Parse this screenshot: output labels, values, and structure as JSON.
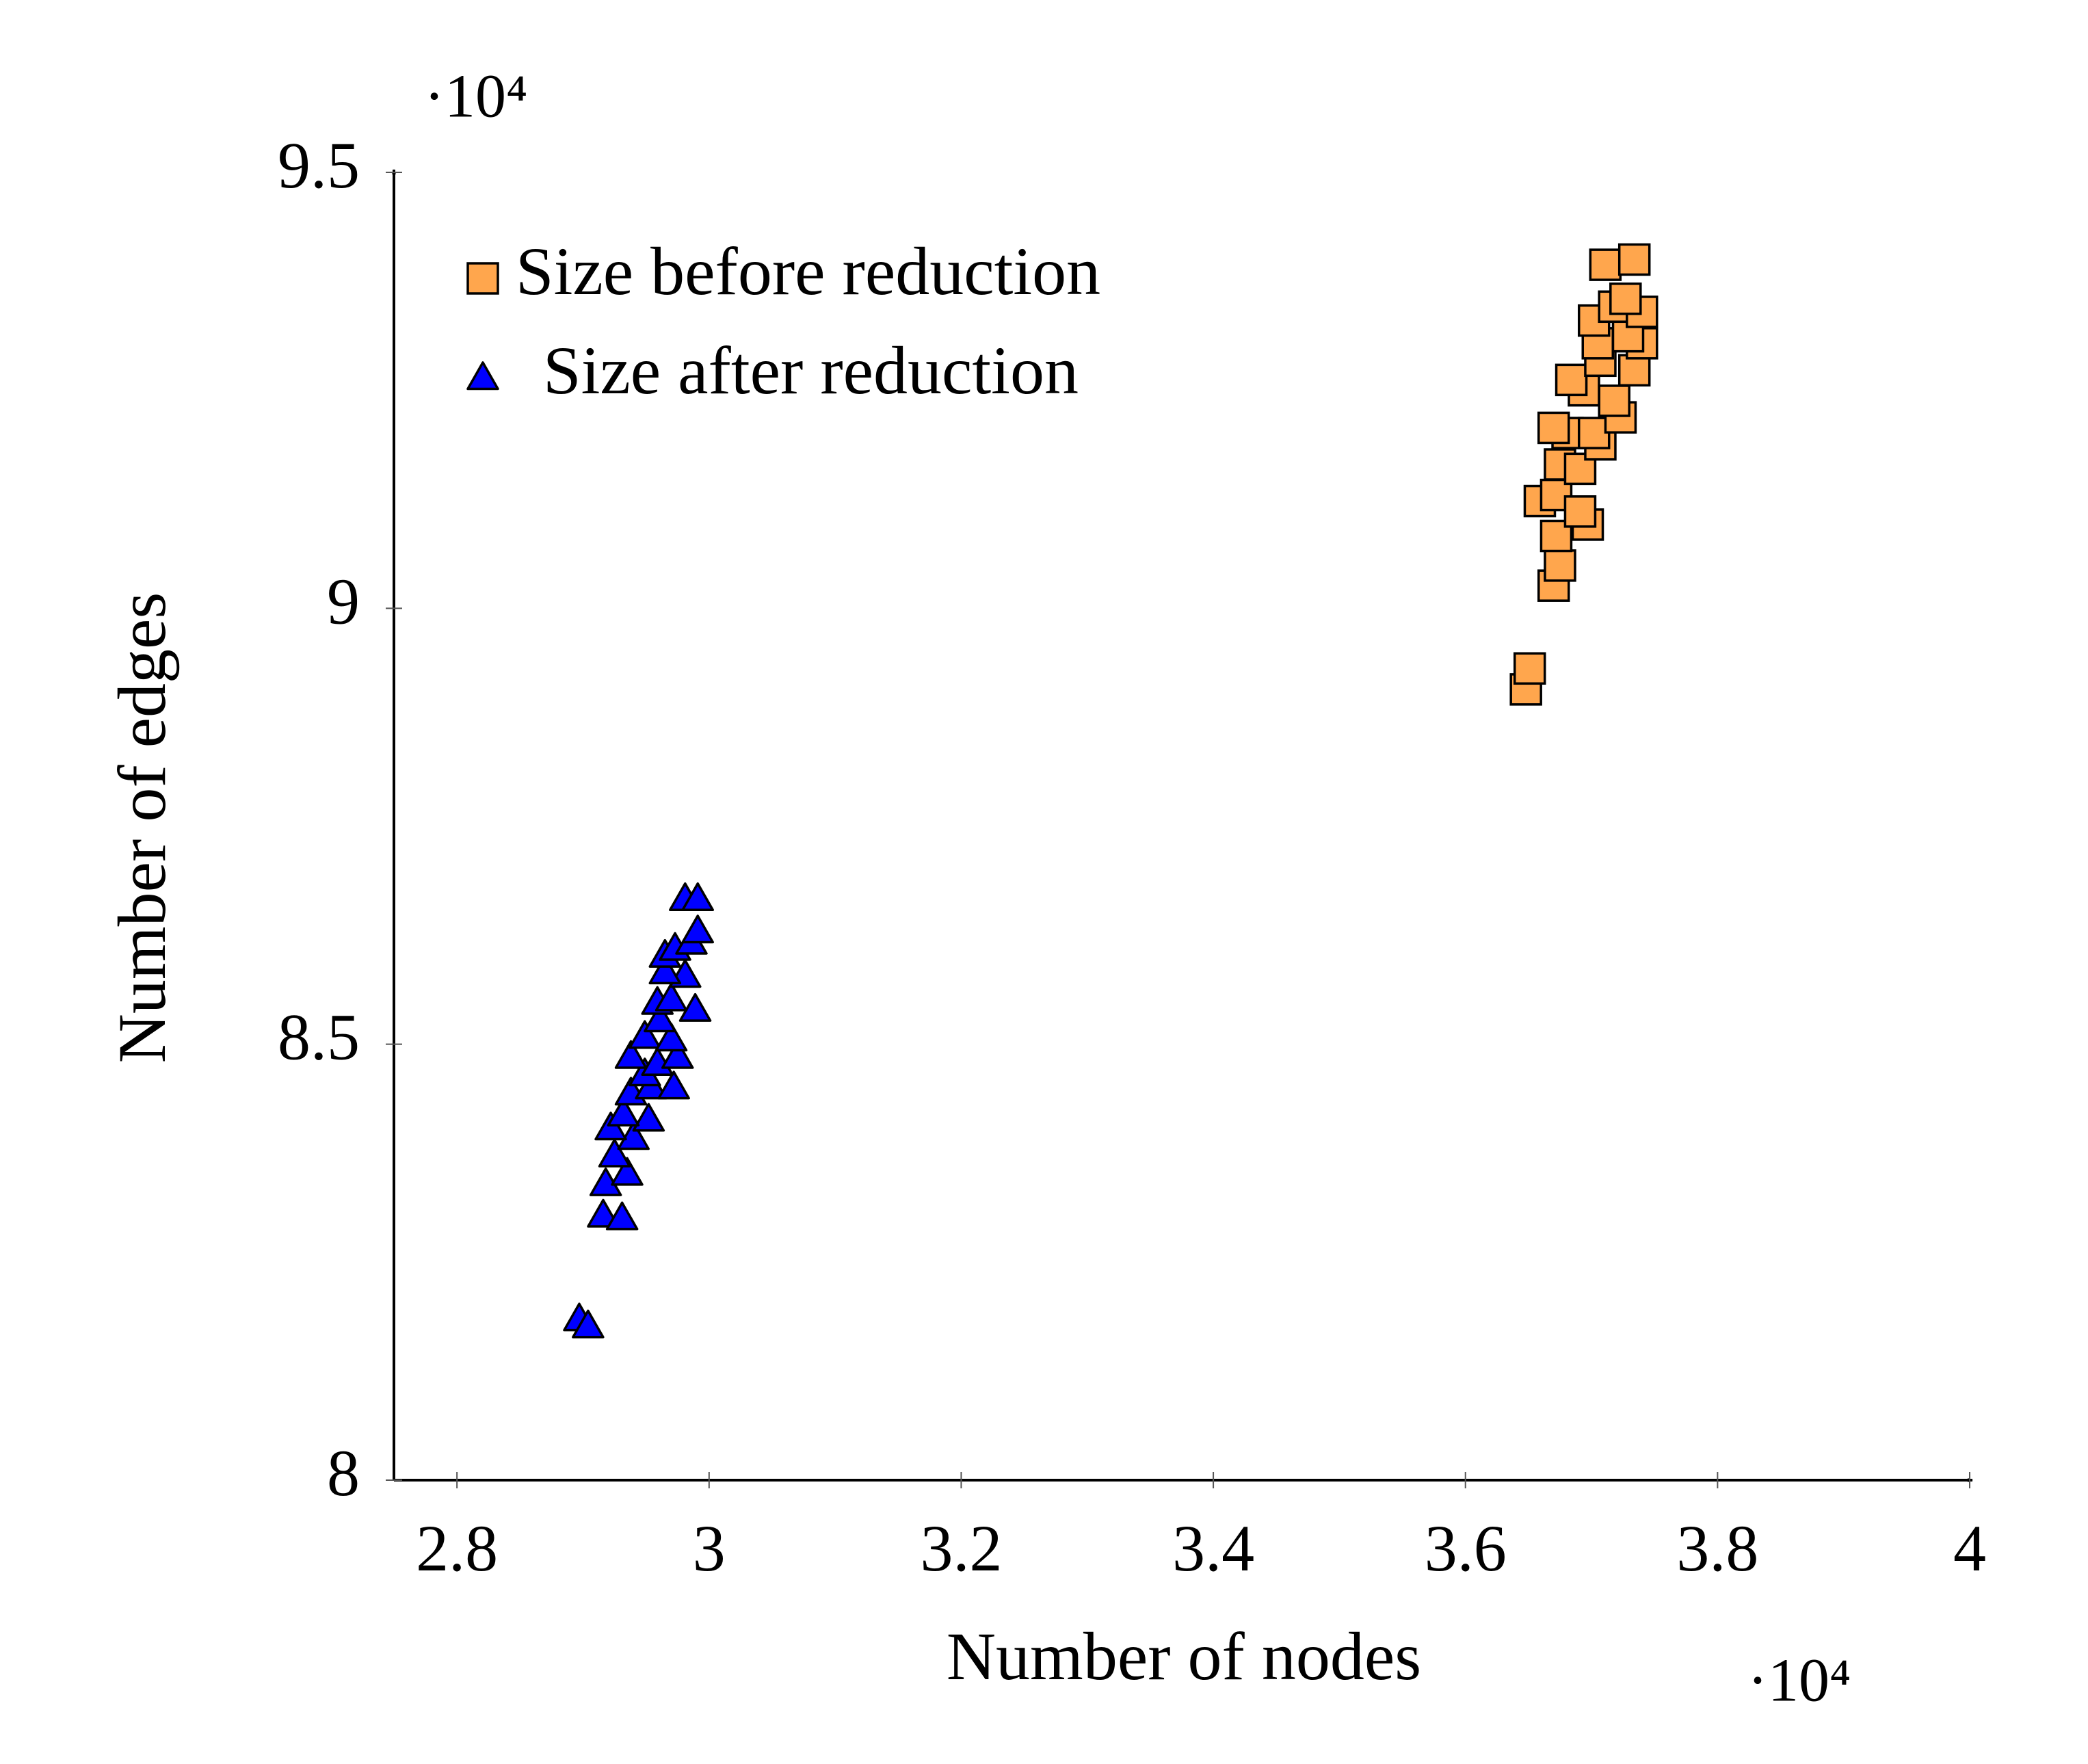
{
  "chart_data": {
    "type": "scatter",
    "x_label": "Number of nodes",
    "y_label": "Number of edges",
    "x_scale_label": "·10⁴",
    "y_scale_label": "·10⁴",
    "xlim": [
      2.75,
      4.0
    ],
    "ylim": [
      8.0,
      9.5
    ],
    "xticks": [
      2.8,
      3,
      3.2,
      3.4,
      3.6,
      3.8,
      4
    ],
    "yticks": [
      8,
      8.5,
      9,
      9.5
    ],
    "grid": false,
    "legend": "upper left",
    "series": [
      {
        "name": "Size before reduction",
        "color": "#ffa64d",
        "marker": "square",
        "x": [
          3.648,
          3.651,
          3.67,
          3.675,
          3.672,
          3.697,
          3.659,
          3.672,
          3.691,
          3.675,
          3.691,
          3.681,
          3.67,
          3.707,
          3.702,
          3.723,
          3.694,
          3.684,
          3.718,
          3.707,
          3.734,
          3.705,
          3.74,
          3.729,
          3.702,
          3.718,
          3.74,
          3.727,
          3.711,
          3.734
        ],
        "values": [
          8.907,
          8.931,
          9.026,
          9.049,
          9.083,
          9.096,
          9.123,
          9.13,
          9.111,
          9.165,
          9.16,
          9.201,
          9.207,
          9.188,
          9.201,
          9.219,
          9.25,
          9.262,
          9.238,
          9.284,
          9.273,
          9.304,
          9.304,
          9.312,
          9.33,
          9.346,
          9.34,
          9.355,
          9.394,
          9.4
        ]
      },
      {
        "name": "Size after reduction",
        "color": "#0000ff",
        "marker": "triangle",
        "x": [
          2.897,
          2.904,
          2.916,
          2.931,
          2.918,
          2.935,
          2.925,
          2.94,
          2.922,
          2.952,
          2.932,
          2.938,
          2.954,
          2.972,
          2.949,
          2.959,
          2.938,
          2.975,
          2.949,
          2.97,
          2.961,
          2.989,
          2.959,
          2.97,
          2.981,
          2.965,
          2.965,
          2.973,
          2.986,
          2.991,
          2.981,
          2.991
        ],
        "values": [
          8.185,
          8.177,
          8.304,
          8.301,
          8.34,
          8.352,
          8.373,
          8.393,
          8.404,
          8.414,
          8.42,
          8.444,
          8.451,
          8.451,
          8.466,
          8.478,
          8.486,
          8.486,
          8.509,
          8.506,
          8.528,
          8.54,
          8.548,
          8.552,
          8.579,
          8.583,
          8.602,
          8.61,
          8.617,
          8.63,
          8.667,
          8.667
        ]
      }
    ]
  }
}
